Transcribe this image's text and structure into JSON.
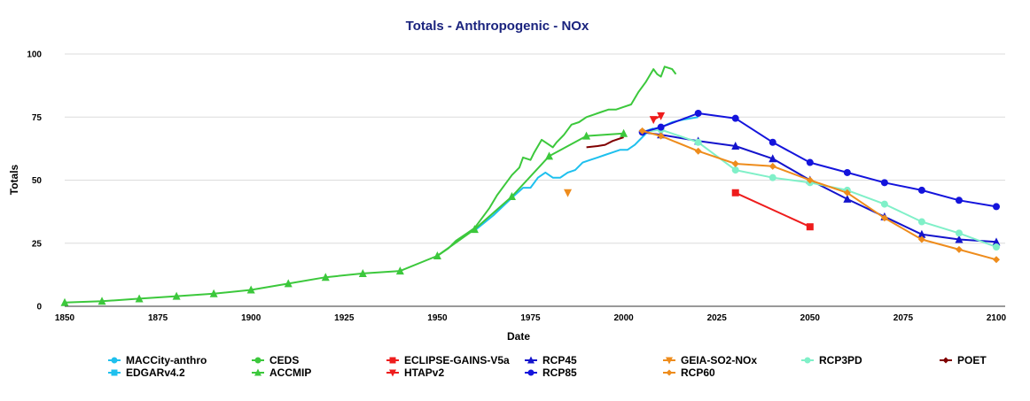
{
  "chart_data": {
    "type": "line",
    "title": "Totals - Anthropogenic - NOx",
    "xlabel": "Date",
    "ylabel": "Totals",
    "xlim": [
      1850,
      2100
    ],
    "ylim": [
      0,
      100
    ],
    "xticks": [
      1850,
      1875,
      1900,
      1925,
      1950,
      1975,
      2000,
      2025,
      2050,
      2075,
      2100
    ],
    "yticks": [
      0,
      25,
      50,
      75,
      100
    ],
    "grid": "horizontal",
    "legend_position": "bottom",
    "series": [
      {
        "name": "MACCity-anthro",
        "color": "#1ec0ee",
        "marker": "circle",
        "line": true,
        "points": [
          [
            1960,
            30
          ],
          [
            1965,
            36
          ],
          [
            1970,
            43
          ],
          [
            1973,
            47
          ],
          [
            1975,
            47
          ],
          [
            1977,
            51
          ],
          [
            1979,
            53
          ],
          [
            1981,
            51
          ],
          [
            1983,
            51
          ],
          [
            1985,
            53
          ],
          [
            1987,
            54
          ],
          [
            1989,
            57
          ],
          [
            1991,
            58
          ],
          [
            1993,
            59
          ],
          [
            1995,
            60
          ],
          [
            1997,
            61
          ],
          [
            1999,
            62
          ],
          [
            2001,
            62
          ],
          [
            2003,
            64
          ],
          [
            2005,
            67
          ],
          [
            2007,
            70
          ],
          [
            2010,
            71
          ],
          [
            2013,
            73
          ],
          [
            2016,
            74
          ],
          [
            2020,
            75
          ]
        ],
        "markers_at": []
      },
      {
        "name": "CEDS",
        "color": "#3cc83c",
        "marker": "circle",
        "line": true,
        "points": [
          [
            1950,
            20
          ],
          [
            1953,
            23
          ],
          [
            1955,
            26
          ],
          [
            1958,
            29
          ],
          [
            1960,
            31
          ],
          [
            1962,
            35
          ],
          [
            1964,
            39
          ],
          [
            1966,
            44
          ],
          [
            1968,
            48
          ],
          [
            1970,
            52
          ],
          [
            1972,
            55
          ],
          [
            1973,
            59
          ],
          [
            1975,
            58
          ],
          [
            1976,
            61
          ],
          [
            1978,
            66
          ],
          [
            1980,
            64
          ],
          [
            1981,
            63
          ],
          [
            1982,
            65
          ],
          [
            1984,
            68
          ],
          [
            1986,
            72
          ],
          [
            1988,
            73
          ],
          [
            1990,
            75
          ],
          [
            1992,
            76
          ],
          [
            1994,
            77
          ],
          [
            1996,
            78
          ],
          [
            1998,
            78
          ],
          [
            2000,
            79
          ],
          [
            2002,
            80
          ],
          [
            2004,
            85
          ],
          [
            2006,
            89
          ],
          [
            2008,
            94
          ],
          [
            2009,
            92
          ],
          [
            2010,
            91
          ],
          [
            2011,
            95
          ],
          [
            2013,
            94
          ],
          [
            2014,
            92
          ]
        ],
        "markers_at": []
      },
      {
        "name": "ECLIPSE-GAINS-V5a",
        "color": "#ee1c1c",
        "marker": "square",
        "line": true,
        "points": [
          [
            2030,
            45
          ],
          [
            2050,
            31.5
          ]
        ],
        "markers_at": [
          [
            2030,
            45
          ],
          [
            2050,
            31.5
          ]
        ]
      },
      {
        "name": "RCP45",
        "color": "#1414cc",
        "marker": "triangle",
        "line": true,
        "points": [
          [
            2005,
            69
          ],
          [
            2010,
            68
          ],
          [
            2020,
            65.5
          ],
          [
            2030,
            63.5
          ],
          [
            2040,
            58.5
          ],
          [
            2050,
            50
          ],
          [
            2060,
            42.5
          ],
          [
            2070,
            35.5
          ],
          [
            2080,
            28.5
          ],
          [
            2090,
            26.5
          ],
          [
            2100,
            25.5
          ]
        ],
        "markers_at": [
          [
            2010,
            68
          ],
          [
            2020,
            65.5
          ],
          [
            2030,
            63.5
          ],
          [
            2040,
            58.5
          ],
          [
            2050,
            50
          ],
          [
            2060,
            42.5
          ],
          [
            2070,
            35.5
          ],
          [
            2080,
            28.5
          ],
          [
            2090,
            26.5
          ],
          [
            2100,
            25.5
          ]
        ]
      },
      {
        "name": "GEIA-SO2-NOx",
        "color": "#ee8c1c",
        "marker": "triangle-down",
        "line": false,
        "points": [
          [
            1985,
            45
          ]
        ],
        "markers_at": [
          [
            1985,
            45
          ]
        ]
      },
      {
        "name": "RCP3PD",
        "color": "#80f0c8",
        "marker": "circle",
        "line": true,
        "points": [
          [
            2005,
            69
          ],
          [
            2010,
            70
          ],
          [
            2020,
            65
          ],
          [
            2030,
            54
          ],
          [
            2040,
            51
          ],
          [
            2050,
            49
          ],
          [
            2060,
            46
          ],
          [
            2070,
            40.5
          ],
          [
            2080,
            33.5
          ],
          [
            2090,
            29
          ],
          [
            2100,
            23.5
          ]
        ],
        "markers_at": [
          [
            2010,
            70
          ],
          [
            2020,
            65
          ],
          [
            2030,
            54
          ],
          [
            2040,
            51
          ],
          [
            2050,
            49
          ],
          [
            2060,
            46
          ],
          [
            2070,
            40.5
          ],
          [
            2080,
            33.5
          ],
          [
            2090,
            29
          ],
          [
            2100,
            23.5
          ]
        ]
      },
      {
        "name": "POET",
        "color": "#800000",
        "marker": "diamond",
        "line": true,
        "points": [
          [
            1990,
            63
          ],
          [
            1993,
            63.5
          ],
          [
            1995,
            64
          ],
          [
            1997,
            65.5
          ],
          [
            2000,
            67
          ]
        ],
        "markers_at": []
      },
      {
        "name": "EDGARv4.2",
        "color": "#1ec0ee",
        "marker": "square",
        "line": true,
        "points": [
          [
            2005,
            69
          ],
          [
            2008,
            70.5
          ]
        ],
        "markers_at": []
      },
      {
        "name": "ACCMIP",
        "color": "#3cc83c",
        "marker": "triangle",
        "line": true,
        "points": [
          [
            1850,
            1.5
          ],
          [
            1860,
            2
          ],
          [
            1870,
            3
          ],
          [
            1880,
            4
          ],
          [
            1890,
            5
          ],
          [
            1900,
            6.5
          ],
          [
            1910,
            9
          ],
          [
            1920,
            11.5
          ],
          [
            1930,
            13
          ],
          [
            1940,
            14
          ],
          [
            1950,
            20
          ],
          [
            1960,
            30.5
          ],
          [
            1970,
            43.5
          ],
          [
            1980,
            59.5
          ],
          [
            1990,
            67.5
          ],
          [
            2000,
            68.5
          ]
        ],
        "markers_at": [
          [
            1850,
            1.5
          ],
          [
            1860,
            2
          ],
          [
            1870,
            3
          ],
          [
            1880,
            4
          ],
          [
            1890,
            5
          ],
          [
            1900,
            6.5
          ],
          [
            1910,
            9
          ],
          [
            1920,
            11.5
          ],
          [
            1930,
            13
          ],
          [
            1940,
            14
          ],
          [
            1950,
            20
          ],
          [
            1960,
            30.5
          ],
          [
            1970,
            43.5
          ],
          [
            1980,
            59.5
          ],
          [
            1990,
            67.5
          ],
          [
            2000,
            68.5
          ]
        ]
      },
      {
        "name": "HTAPv2",
        "color": "#ee1c1c",
        "marker": "triangle-down",
        "line": true,
        "points": [
          [
            2008,
            74
          ],
          [
            2010,
            75.5
          ]
        ],
        "markers_at": [
          [
            2008,
            74
          ],
          [
            2010,
            75.5
          ]
        ]
      },
      {
        "name": "RCP85",
        "color": "#1414dc",
        "marker": "circle",
        "line": true,
        "points": [
          [
            2005,
            69
          ],
          [
            2010,
            71
          ],
          [
            2020,
            76.5
          ],
          [
            2030,
            74.5
          ],
          [
            2040,
            65
          ],
          [
            2050,
            57
          ],
          [
            2060,
            53
          ],
          [
            2070,
            49
          ],
          [
            2080,
            46
          ],
          [
            2090,
            42
          ],
          [
            2100,
            39.5
          ]
        ],
        "markers_at": [
          [
            2005,
            69
          ],
          [
            2010,
            71
          ],
          [
            2020,
            76.5
          ],
          [
            2030,
            74.5
          ],
          [
            2040,
            65
          ],
          [
            2050,
            57
          ],
          [
            2060,
            53
          ],
          [
            2070,
            49
          ],
          [
            2080,
            46
          ],
          [
            2090,
            42
          ],
          [
            2100,
            39.5
          ]
        ]
      },
      {
        "name": "RCP60",
        "color": "#ee8c1c",
        "marker": "diamond",
        "line": true,
        "points": [
          [
            2005,
            69.5
          ],
          [
            2010,
            67.5
          ],
          [
            2020,
            61.5
          ],
          [
            2030,
            56.5
          ],
          [
            2040,
            55.5
          ],
          [
            2050,
            50
          ],
          [
            2060,
            45
          ],
          [
            2070,
            35
          ],
          [
            2080,
            26.5
          ],
          [
            2090,
            22.5
          ],
          [
            2100,
            18.5
          ]
        ],
        "markers_at": [
          [
            2005,
            69.5
          ],
          [
            2010,
            67.5
          ],
          [
            2020,
            61.5
          ],
          [
            2030,
            56.5
          ],
          [
            2040,
            55.5
          ],
          [
            2050,
            50
          ],
          [
            2060,
            45
          ],
          [
            2070,
            35
          ],
          [
            2080,
            26.5
          ],
          [
            2090,
            22.5
          ],
          [
            2100,
            18.5
          ]
        ]
      }
    ],
    "legend_order": [
      "MACCity-anthro",
      "CEDS",
      "ECLIPSE-GAINS-V5a",
      "RCP45",
      "GEIA-SO2-NOx",
      "RCP3PD",
      "POET",
      "EDGARv4.2",
      "ACCMIP",
      "HTAPv2",
      "RCP85",
      "RCP60"
    ]
  }
}
